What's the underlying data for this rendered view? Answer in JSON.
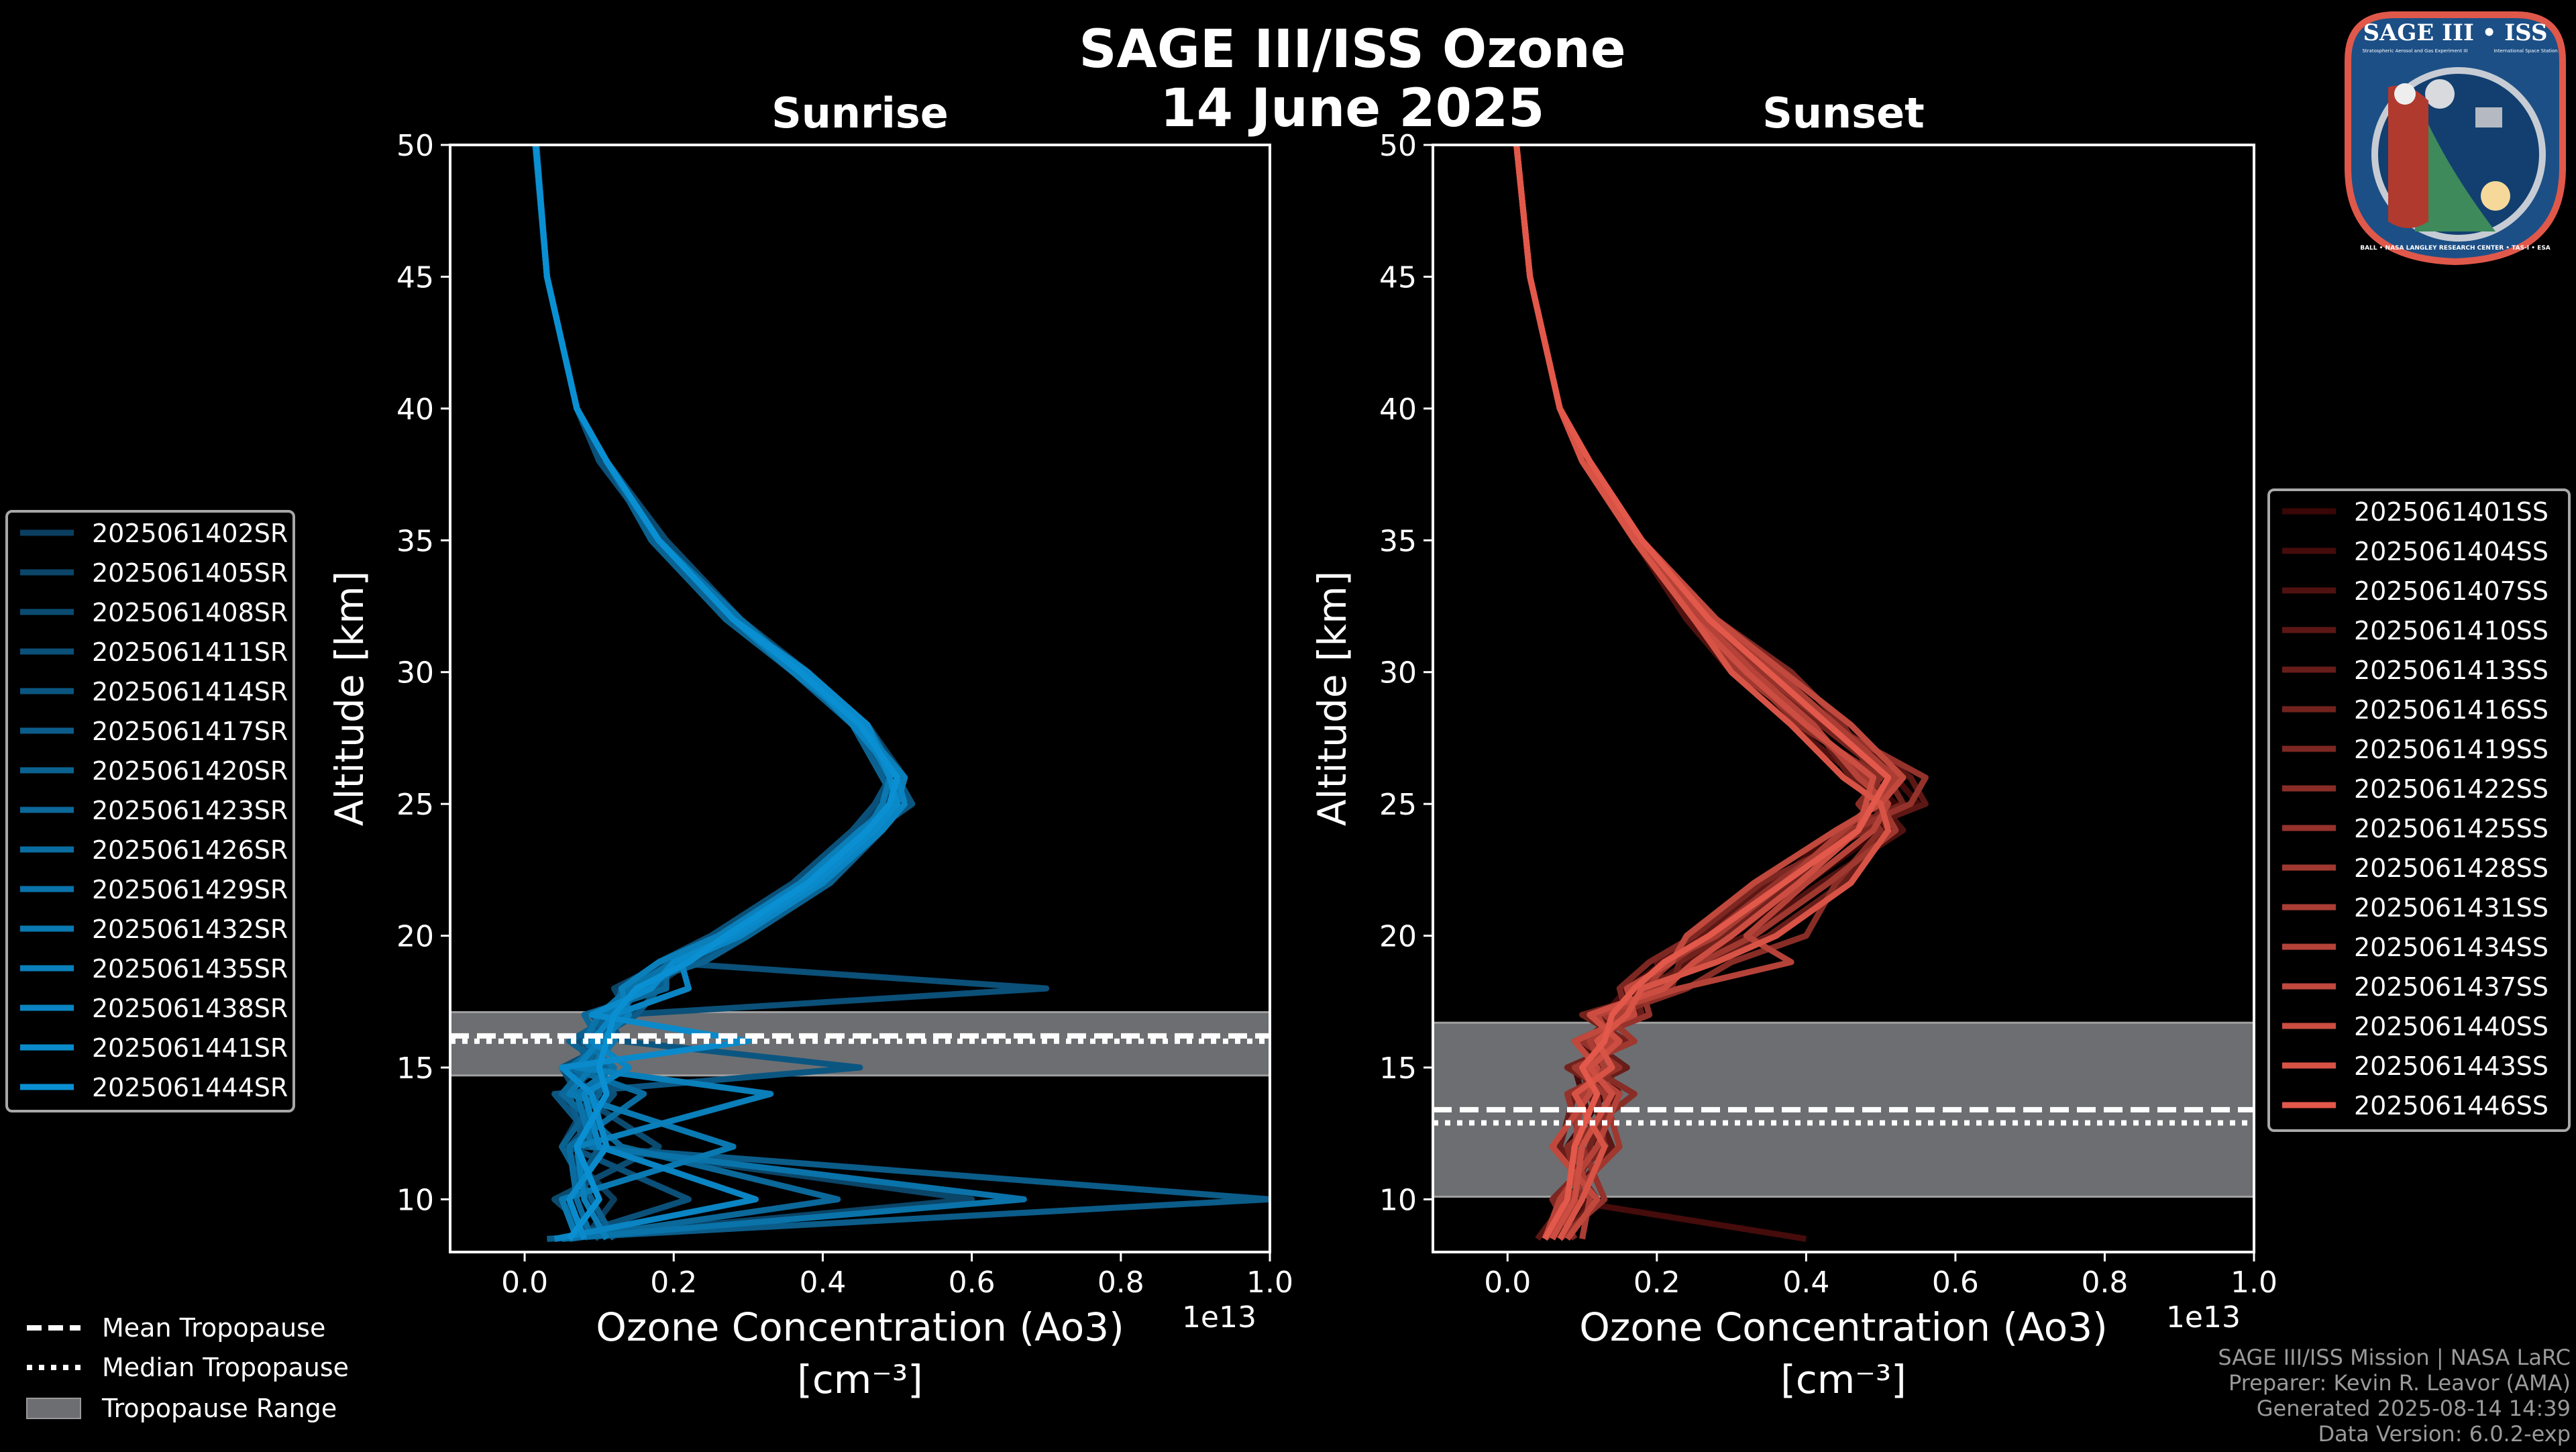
{
  "title": "SAGE III/ISS Ozone",
  "date": "14 June 2025",
  "footer": [
    "SAGE III/ISS Mission | NASA LaRC",
    "Preparer: Kevin R. Leavor (AMA)",
    "Generated 2025-08-14 14:39",
    "Data Version: 6.0.2-exp"
  ],
  "logo": {
    "title": "SAGE III • ISS",
    "subtitle_left": "Stratospheric Aerosol and Gas Experiment III",
    "subtitle_right": "International Space Station",
    "ring_text": "BALL • NASA LANGLEY RESEARCH CENTER • TAS-I • ESA"
  },
  "tropopause_legend": {
    "mean": "Mean Tropopause",
    "median": "Median Tropopause",
    "range": "Tropopause Range"
  },
  "chart_data": [
    {
      "type": "line",
      "title": "Sunrise",
      "xlabel": "Ozone Concentration (Ao3)",
      "xlabel_units": "[cm⁻³]",
      "x_scale_label": "1e13",
      "ylabel": "Altitude [km]",
      "xlim": [
        -0.1,
        1.0
      ],
      "ylim": [
        8,
        50
      ],
      "xticks": [
        "0.0",
        "0.2",
        "0.4",
        "0.6",
        "0.8",
        "1.0"
      ],
      "yticks": [
        "10",
        "15",
        "20",
        "25",
        "30",
        "35",
        "40",
        "45",
        "50"
      ],
      "grid": false,
      "legend_placement": "left-outside",
      "color_start": "#0b3f60",
      "color_end": "#0a90d2",
      "tropopause": {
        "mean_km": 16.2,
        "median_km": 16.0,
        "range_km": [
          14.7,
          17.1
        ]
      },
      "altitude_km": [
        8.5,
        10,
        12,
        14,
        15,
        16,
        17,
        18,
        19,
        20,
        22,
        24,
        25,
        26,
        28,
        30,
        32,
        35,
        38,
        40,
        45,
        50
      ],
      "series": [
        {
          "name": "2025061402SR",
          "values": [
            0.08,
            0.12,
            0.05,
            0.09,
            0.06,
            0.11,
            0.1,
            0.17,
            0.22,
            0.28,
            0.39,
            0.47,
            0.5,
            0.49,
            0.44,
            0.37,
            0.28,
            0.18,
            0.11,
            0.07,
            0.03,
            0.015
          ]
        },
        {
          "name": "2025061405SR",
          "values": [
            0.04,
            0.6,
            0.09,
            0.05,
            0.1,
            0.08,
            0.14,
            0.12,
            0.19,
            0.26,
            0.37,
            0.45,
            0.48,
            0.51,
            0.46,
            0.36,
            0.27,
            0.18,
            0.11,
            0.07,
            0.03,
            0.016
          ]
        },
        {
          "name": "2025061408SR",
          "values": [
            0.1,
            0.04,
            0.18,
            0.07,
            0.05,
            0.12,
            0.09,
            0.16,
            0.21,
            0.29,
            0.4,
            0.48,
            0.51,
            0.5,
            0.45,
            0.38,
            0.29,
            0.19,
            0.11,
            0.07,
            0.03,
            0.015
          ]
        },
        {
          "name": "2025061411SR",
          "values": [
            0.05,
            0.22,
            0.06,
            0.12,
            0.09,
            0.07,
            0.13,
            0.7,
            0.18,
            0.25,
            0.36,
            0.44,
            0.47,
            0.49,
            0.44,
            0.36,
            0.28,
            0.18,
            0.1,
            0.07,
            0.03,
            0.014
          ]
        },
        {
          "name": "2025061414SR",
          "values": [
            0.07,
            0.06,
            0.1,
            0.04,
            0.45,
            0.13,
            0.11,
            0.14,
            0.23,
            0.28,
            0.38,
            0.47,
            0.52,
            0.5,
            0.45,
            0.37,
            0.28,
            0.18,
            0.11,
            0.07,
            0.03,
            0.015
          ]
        },
        {
          "name": "2025061417SR",
          "values": [
            0.03,
            1.0,
            0.08,
            0.06,
            0.07,
            0.09,
            0.15,
            0.18,
            0.2,
            0.27,
            0.39,
            0.46,
            0.49,
            0.5,
            0.46,
            0.37,
            0.28,
            0.18,
            0.11,
            0.07,
            0.03,
            0.015
          ]
        },
        {
          "name": "2025061420SR",
          "values": [
            0.12,
            0.09,
            0.05,
            0.1,
            0.11,
            0.06,
            0.12,
            0.13,
            0.24,
            0.3,
            0.41,
            0.48,
            0.5,
            0.48,
            0.44,
            0.36,
            0.27,
            0.17,
            0.11,
            0.07,
            0.03,
            0.015
          ]
        },
        {
          "name": "2025061423SR",
          "values": [
            0.06,
            0.42,
            0.13,
            0.05,
            0.08,
            0.1,
            0.08,
            0.19,
            0.19,
            0.26,
            0.37,
            0.45,
            0.49,
            0.51,
            0.45,
            0.37,
            0.28,
            0.18,
            0.11,
            0.07,
            0.03,
            0.015
          ]
        },
        {
          "name": "2025061426SR",
          "values": [
            0.09,
            0.07,
            0.06,
            0.16,
            0.06,
            0.11,
            0.13,
            0.15,
            0.21,
            0.27,
            0.38,
            0.46,
            0.5,
            0.5,
            0.45,
            0.38,
            0.28,
            0.18,
            0.11,
            0.07,
            0.03,
            0.015
          ]
        },
        {
          "name": "2025061429SR",
          "values": [
            0.05,
            0.67,
            0.09,
            0.07,
            0.12,
            0.08,
            0.1,
            0.14,
            0.2,
            0.28,
            0.39,
            0.47,
            0.49,
            0.5,
            0.46,
            0.37,
            0.29,
            0.18,
            0.11,
            0.07,
            0.03,
            0.015
          ]
        },
        {
          "name": "2025061432SR",
          "values": [
            0.07,
            0.05,
            0.28,
            0.06,
            0.09,
            0.12,
            0.11,
            0.16,
            0.22,
            0.27,
            0.38,
            0.46,
            0.48,
            0.49,
            0.45,
            0.37,
            0.28,
            0.18,
            0.11,
            0.07,
            0.03,
            0.015
          ]
        },
        {
          "name": "2025061435SR",
          "values": [
            0.11,
            0.08,
            0.07,
            0.33,
            0.07,
            0.1,
            0.14,
            0.13,
            0.18,
            0.26,
            0.37,
            0.45,
            0.5,
            0.51,
            0.45,
            0.36,
            0.28,
            0.18,
            0.11,
            0.07,
            0.03,
            0.015
          ]
        },
        {
          "name": "2025061438SR",
          "values": [
            0.04,
            0.31,
            0.1,
            0.08,
            0.14,
            0.09,
            0.12,
            0.22,
            0.21,
            0.29,
            0.4,
            0.48,
            0.51,
            0.5,
            0.44,
            0.37,
            0.28,
            0.18,
            0.11,
            0.07,
            0.03,
            0.015
          ]
        },
        {
          "name": "2025061441SR",
          "values": [
            0.08,
            0.06,
            0.11,
            0.09,
            0.05,
            0.3,
            0.09,
            0.17,
            0.2,
            0.28,
            0.39,
            0.47,
            0.5,
            0.49,
            0.46,
            0.38,
            0.28,
            0.18,
            0.11,
            0.07,
            0.03,
            0.015
          ]
        },
        {
          "name": "2025061444SR",
          "values": [
            0.06,
            0.1,
            0.07,
            0.11,
            0.1,
            0.11,
            0.12,
            0.15,
            0.22,
            0.27,
            0.38,
            0.46,
            0.49,
            0.5,
            0.45,
            0.37,
            0.28,
            0.18,
            0.11,
            0.07,
            0.03,
            0.015
          ]
        }
      ]
    },
    {
      "type": "line",
      "title": "Sunset",
      "xlabel": "Ozone Concentration (Ao3)",
      "xlabel_units": "[cm⁻³]",
      "x_scale_label": "1e13",
      "ylabel": "Altitude [km]",
      "xlim": [
        -0.1,
        1.0
      ],
      "ylim": [
        8,
        50
      ],
      "xticks": [
        "0.0",
        "0.2",
        "0.4",
        "0.6",
        "0.8",
        "1.0"
      ],
      "yticks": [
        "10",
        "15",
        "20",
        "25",
        "30",
        "35",
        "40",
        "45",
        "50"
      ],
      "grid": false,
      "legend_placement": "right-outside",
      "color_start": "#3a0707",
      "color_end": "#e2584a",
      "tropopause": {
        "mean_km": 13.4,
        "median_km": 12.9,
        "range_km": [
          10.1,
          16.7
        ]
      },
      "altitude_km": [
        8.5,
        10,
        12,
        14,
        15,
        16,
        17,
        18,
        19,
        20,
        22,
        24,
        25,
        26,
        28,
        30,
        32,
        35,
        38,
        40,
        45,
        50
      ],
      "series": [
        {
          "name": "2025061401SS",
          "values": [
            0.05,
            0.1,
            0.08,
            0.13,
            0.12,
            0.1,
            0.15,
            0.2,
            0.25,
            0.3,
            0.4,
            0.5,
            0.52,
            0.48,
            0.4,
            0.31,
            0.25,
            0.17,
            0.11,
            0.07,
            0.03,
            0.012
          ]
        },
        {
          "name": "2025061404SS",
          "values": [
            0.4,
            0.07,
            0.12,
            0.1,
            0.09,
            0.14,
            0.13,
            0.16,
            0.21,
            0.27,
            0.36,
            0.44,
            0.55,
            0.52,
            0.43,
            0.35,
            0.27,
            0.18,
            0.11,
            0.07,
            0.03,
            0.012
          ]
        },
        {
          "name": "2025061407SS",
          "values": [
            0.08,
            0.11,
            0.09,
            0.15,
            0.13,
            0.09,
            0.17,
            0.19,
            0.24,
            0.32,
            0.42,
            0.53,
            0.5,
            0.47,
            0.38,
            0.3,
            0.24,
            0.17,
            0.1,
            0.07,
            0.03,
            0.012
          ]
        },
        {
          "name": "2025061410SS",
          "values": [
            0.04,
            0.08,
            0.14,
            0.11,
            0.1,
            0.15,
            0.12,
            0.21,
            0.2,
            0.26,
            0.35,
            0.47,
            0.56,
            0.54,
            0.44,
            0.34,
            0.26,
            0.18,
            0.11,
            0.07,
            0.03,
            0.012
          ]
        },
        {
          "name": "2025061413SS",
          "values": [
            0.07,
            0.12,
            0.07,
            0.09,
            0.16,
            0.11,
            0.18,
            0.17,
            0.27,
            0.35,
            0.45,
            0.51,
            0.49,
            0.46,
            0.41,
            0.36,
            0.27,
            0.18,
            0.11,
            0.07,
            0.03,
            0.012
          ]
        },
        {
          "name": "2025061416SS",
          "values": [
            0.06,
            0.09,
            0.11,
            0.14,
            0.08,
            0.16,
            0.1,
            0.22,
            0.23,
            0.29,
            0.38,
            0.45,
            0.53,
            0.51,
            0.42,
            0.33,
            0.25,
            0.17,
            0.11,
            0.07,
            0.03,
            0.012
          ]
        },
        {
          "name": "2025061419SS",
          "values": [
            0.09,
            0.06,
            0.13,
            0.12,
            0.14,
            0.12,
            0.16,
            0.15,
            0.19,
            0.25,
            0.34,
            0.48,
            0.51,
            0.49,
            0.45,
            0.38,
            0.28,
            0.18,
            0.11,
            0.07,
            0.03,
            0.012
          ]
        },
        {
          "name": "2025061422SS",
          "values": [
            0.05,
            0.1,
            0.08,
            0.17,
            0.11,
            0.13,
            0.14,
            0.24,
            0.3,
            0.4,
            0.44,
            0.5,
            0.47,
            0.5,
            0.39,
            0.32,
            0.26,
            0.18,
            0.11,
            0.07,
            0.03,
            0.012
          ]
        },
        {
          "name": "2025061425SS",
          "values": [
            0.07,
            0.13,
            0.1,
            0.08,
            0.15,
            0.1,
            0.19,
            0.18,
            0.22,
            0.27,
            0.36,
            0.46,
            0.54,
            0.56,
            0.43,
            0.34,
            0.27,
            0.18,
            0.11,
            0.07,
            0.03,
            0.012
          ]
        },
        {
          "name": "2025061428SS",
          "values": [
            0.06,
            0.08,
            0.15,
            0.13,
            0.09,
            0.17,
            0.13,
            0.2,
            0.26,
            0.33,
            0.43,
            0.52,
            0.5,
            0.48,
            0.4,
            0.31,
            0.25,
            0.17,
            0.11,
            0.07,
            0.03,
            0.012
          ]
        },
        {
          "name": "2025061431SS",
          "values": [
            0.1,
            0.11,
            0.09,
            0.1,
            0.13,
            0.11,
            0.15,
            0.19,
            0.21,
            0.28,
            0.37,
            0.45,
            0.49,
            0.52,
            0.44,
            0.36,
            0.27,
            0.18,
            0.11,
            0.07,
            0.03,
            0.012
          ]
        },
        {
          "name": "2025061434SS",
          "values": [
            0.05,
            0.07,
            0.12,
            0.15,
            0.1,
            0.14,
            0.12,
            0.23,
            0.38,
            0.32,
            0.4,
            0.49,
            0.51,
            0.47,
            0.41,
            0.33,
            0.26,
            0.18,
            0.11,
            0.07,
            0.03,
            0.012
          ]
        },
        {
          "name": "2025061437SS",
          "values": [
            0.08,
            0.12,
            0.06,
            0.11,
            0.12,
            0.09,
            0.17,
            0.16,
            0.22,
            0.24,
            0.33,
            0.44,
            0.5,
            0.53,
            0.46,
            0.37,
            0.28,
            0.18,
            0.11,
            0.07,
            0.03,
            0.012
          ]
        },
        {
          "name": "2025061440SS",
          "values": [
            0.06,
            0.09,
            0.1,
            0.14,
            0.11,
            0.15,
            0.11,
            0.21,
            0.25,
            0.3,
            0.39,
            0.47,
            0.48,
            0.49,
            0.4,
            0.32,
            0.25,
            0.17,
            0.11,
            0.07,
            0.03,
            0.012
          ]
        },
        {
          "name": "2025061443SS",
          "values": [
            0.07,
            0.1,
            0.13,
            0.09,
            0.14,
            0.12,
            0.16,
            0.18,
            0.28,
            0.36,
            0.46,
            0.51,
            0.5,
            0.45,
            0.38,
            0.3,
            0.25,
            0.17,
            0.1,
            0.07,
            0.03,
            0.012
          ]
        },
        {
          "name": "2025061446SS",
          "values": [
            0.05,
            0.08,
            0.09,
            0.12,
            0.1,
            0.13,
            0.14,
            0.17,
            0.21,
            0.27,
            0.37,
            0.47,
            0.49,
            0.51,
            0.43,
            0.35,
            0.27,
            0.18,
            0.11,
            0.07,
            0.03,
            0.012
          ]
        }
      ]
    }
  ]
}
